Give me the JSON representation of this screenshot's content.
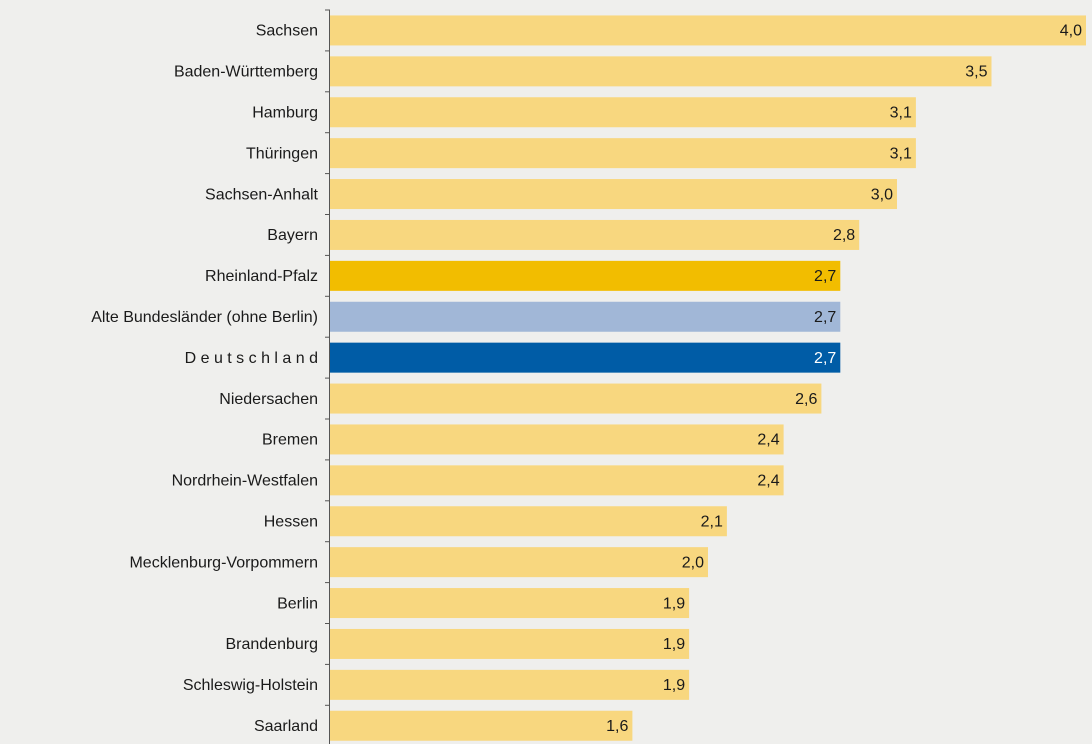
{
  "chart_data": {
    "type": "barh",
    "categories": [
      "Sachsen",
      "Baden-Württemberg",
      "Hamburg",
      "Thüringen",
      "Sachsen-Anhalt",
      "Bayern",
      "Rheinland-Pfalz",
      "Alte Bundesländer (ohne Berlin)",
      "D e u t s c h l a n d",
      "Niedersachen",
      "Bremen",
      "Nordrhein-Westfalen",
      "Hessen",
      "Mecklenburg-Vorpommern",
      "Berlin",
      "Brandenburg",
      "Schleswig-Holstein",
      "Saarland"
    ],
    "values": [
      4.0,
      3.5,
      3.1,
      3.1,
      3.0,
      2.8,
      2.7,
      2.7,
      2.7,
      2.6,
      2.4,
      2.4,
      2.1,
      2.0,
      1.9,
      1.9,
      1.9,
      1.6
    ],
    "value_labels": [
      "4,0",
      "3,5",
      "3,1",
      "3,1",
      "3,0",
      "2,8",
      "2,7",
      "2,7",
      "2,7",
      "2,6",
      "2,4",
      "2,4",
      "2,1",
      "2,0",
      "1,9",
      "1,9",
      "1,9",
      "1,6"
    ],
    "colors": [
      "#f8d77f",
      "#f8d77f",
      "#f8d77f",
      "#f8d77f",
      "#f8d77f",
      "#f8d77f",
      "#f2bd00",
      "#a1b7d7",
      "#005ca6",
      "#f8d77f",
      "#f8d77f",
      "#f8d77f",
      "#f8d77f",
      "#f8d77f",
      "#f8d77f",
      "#f8d77f",
      "#f8d77f",
      "#f8d77f"
    ],
    "xlim": [
      0,
      4.0
    ]
  }
}
